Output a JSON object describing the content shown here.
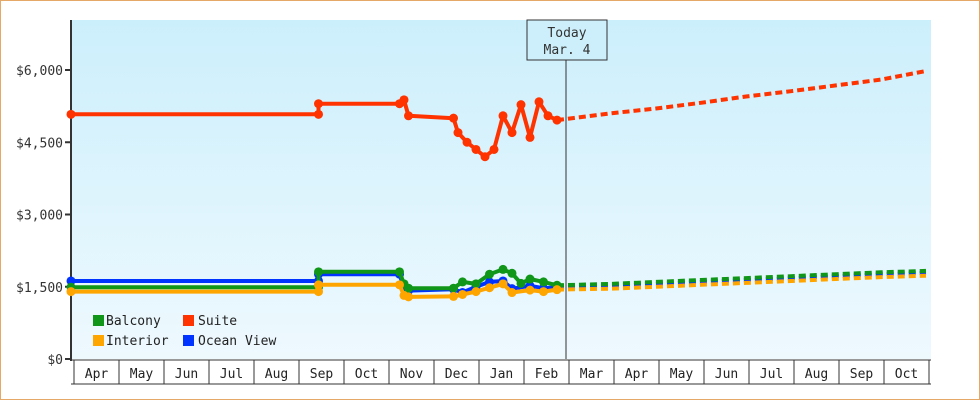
{
  "chart_data": {
    "type": "line",
    "title": "",
    "xlabel": "",
    "ylabel": "",
    "ylim": [
      0,
      7000
    ],
    "yticks": [
      "$0",
      "$1,500",
      "$3,000",
      "$4,500",
      "$6,000"
    ],
    "ytick_values": [
      0,
      1500,
      3000,
      4500,
      6000
    ],
    "x_months": [
      "Apr",
      "May",
      "Jun",
      "Jul",
      "Aug",
      "Sep",
      "Oct",
      "Nov",
      "Dec",
      "Jan",
      "Feb",
      "Mar",
      "Apr",
      "May",
      "Jun",
      "Jul",
      "Aug",
      "Sep",
      "Oct",
      ""
    ],
    "today_marker": {
      "line1": "Today",
      "line2": "Mar. 4"
    },
    "legend": [
      {
        "name": "Balcony",
        "color": "#109618"
      },
      {
        "name": "Suite",
        "color": "#ff3300"
      },
      {
        "name": "Interior",
        "color": "#ffa500"
      },
      {
        "name": "Ocean View",
        "color": "#0033ff"
      }
    ],
    "series": [
      {
        "name": "Suite",
        "color": "#ff3300",
        "historical": [
          [
            0,
            5080
          ],
          [
            5.5,
            5080
          ],
          [
            5.5,
            5300
          ],
          [
            7.3,
            5300
          ],
          [
            7.4,
            5380
          ],
          [
            7.5,
            5050
          ],
          [
            8.5,
            5000
          ],
          [
            8.6,
            4700
          ],
          [
            8.8,
            4500
          ],
          [
            9.0,
            4350
          ],
          [
            9.2,
            4200
          ],
          [
            9.4,
            4350
          ],
          [
            9.6,
            5050
          ],
          [
            9.8,
            4700
          ],
          [
            10.0,
            5280
          ],
          [
            10.2,
            4600
          ],
          [
            10.4,
            5340
          ],
          [
            10.6,
            5050
          ],
          [
            10.8,
            4960
          ]
        ],
        "forecast": [
          [
            10.8,
            4960
          ],
          [
            12,
            5100
          ],
          [
            13,
            5200
          ],
          [
            14,
            5320
          ],
          [
            15,
            5450
          ],
          [
            16,
            5560
          ],
          [
            17,
            5680
          ],
          [
            18,
            5800
          ],
          [
            19,
            5980
          ]
        ]
      },
      {
        "name": "Ocean View",
        "color": "#0033ff",
        "historical": [
          [
            0,
            1620
          ],
          [
            5.5,
            1620
          ],
          [
            5.5,
            1760
          ],
          [
            7.3,
            1760
          ],
          [
            7.4,
            1480
          ],
          [
            7.5,
            1420
          ],
          [
            8.5,
            1450
          ],
          [
            8.7,
            1380
          ],
          [
            9.0,
            1500
          ],
          [
            9.3,
            1600
          ],
          [
            9.6,
            1620
          ],
          [
            9.8,
            1460
          ],
          [
            10.2,
            1520
          ],
          [
            10.5,
            1470
          ],
          [
            10.8,
            1490
          ]
        ],
        "forecast": [
          [
            10.8,
            1490
          ],
          [
            12,
            1520
          ],
          [
            13,
            1560
          ],
          [
            14,
            1600
          ],
          [
            15,
            1640
          ],
          [
            16,
            1680
          ],
          [
            17,
            1720
          ],
          [
            18,
            1760
          ],
          [
            19,
            1790
          ]
        ]
      },
      {
        "name": "Balcony",
        "color": "#109618",
        "historical": [
          [
            0,
            1490
          ],
          [
            5.5,
            1490
          ],
          [
            5.5,
            1810
          ],
          [
            7.3,
            1810
          ],
          [
            7.4,
            1560
          ],
          [
            7.5,
            1470
          ],
          [
            8.5,
            1470
          ],
          [
            8.7,
            1600
          ],
          [
            9.0,
            1560
          ],
          [
            9.3,
            1760
          ],
          [
            9.6,
            1860
          ],
          [
            9.8,
            1780
          ],
          [
            10.0,
            1570
          ],
          [
            10.2,
            1660
          ],
          [
            10.5,
            1600
          ],
          [
            10.8,
            1530
          ]
        ],
        "forecast": [
          [
            10.8,
            1530
          ],
          [
            12,
            1560
          ],
          [
            13,
            1600
          ],
          [
            14,
            1640
          ],
          [
            15,
            1680
          ],
          [
            16,
            1720
          ],
          [
            17,
            1760
          ],
          [
            18,
            1800
          ],
          [
            19,
            1830
          ]
        ]
      },
      {
        "name": "Interior",
        "color": "#ffa500",
        "historical": [
          [
            0,
            1400
          ],
          [
            5.5,
            1400
          ],
          [
            5.5,
            1540
          ],
          [
            7.3,
            1540
          ],
          [
            7.4,
            1320
          ],
          [
            7.5,
            1290
          ],
          [
            8.5,
            1300
          ],
          [
            8.7,
            1340
          ],
          [
            9.0,
            1400
          ],
          [
            9.3,
            1480
          ],
          [
            9.6,
            1560
          ],
          [
            9.8,
            1380
          ],
          [
            10.2,
            1430
          ],
          [
            10.5,
            1400
          ],
          [
            10.8,
            1440
          ]
        ],
        "forecast": [
          [
            10.8,
            1440
          ],
          [
            12,
            1460
          ],
          [
            13,
            1500
          ],
          [
            14,
            1540
          ],
          [
            15,
            1580
          ],
          [
            16,
            1620
          ],
          [
            17,
            1660
          ],
          [
            18,
            1700
          ],
          [
            19,
            1730
          ]
        ]
      }
    ]
  }
}
